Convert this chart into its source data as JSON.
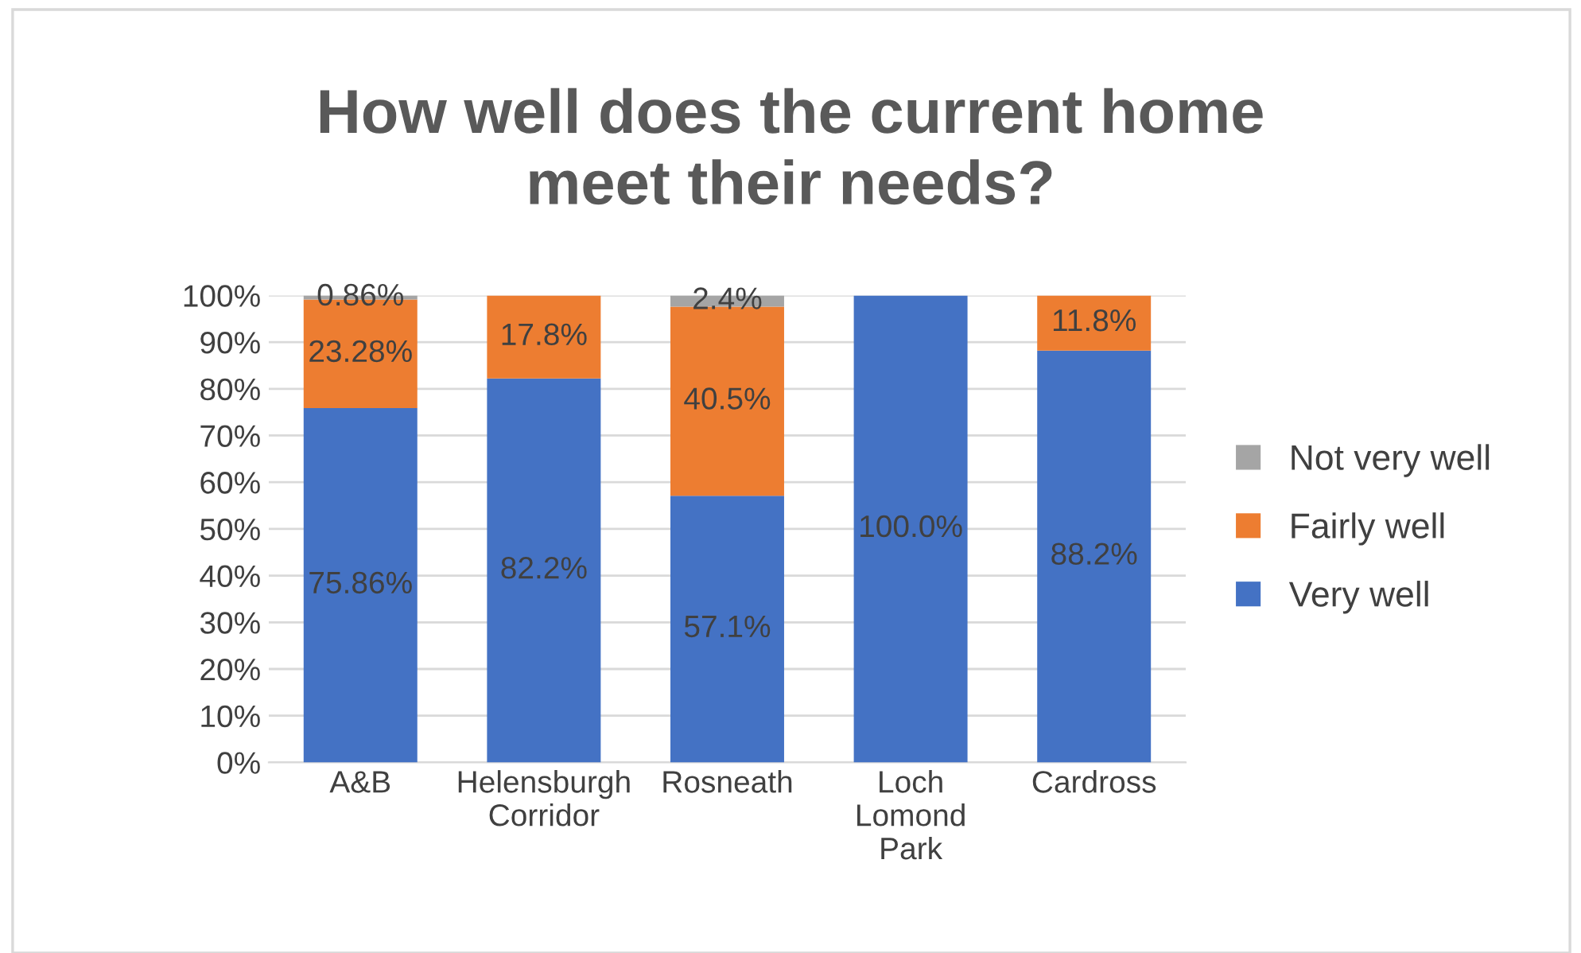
{
  "chart_data": {
    "type": "bar",
    "title": "How well does the current home\nmeet their needs?",
    "categories": [
      "A&B",
      "Helensburgh\nCorridor",
      "Rosneath",
      "Loch\nLomond\nPark",
      "Cardross"
    ],
    "stacked": true,
    "series": [
      {
        "name": "Very well",
        "color": "#4472c4",
        "values": [
          75.86,
          82.2,
          57.1,
          100.0,
          88.2
        ],
        "value_labels": [
          "75.86%",
          "82.2%",
          "57.1%",
          "100.0%",
          "88.2%"
        ]
      },
      {
        "name": "Fairly well",
        "color": "#ed7d31",
        "values": [
          23.28,
          17.8,
          40.5,
          null,
          11.8
        ],
        "value_labels": [
          "23.28%",
          "17.8%",
          "40.5%",
          null,
          "11.8%"
        ]
      },
      {
        "name": "Not very well",
        "color": "#a5a5a5",
        "values": [
          0.86,
          null,
          2.4,
          null,
          null
        ],
        "value_labels": [
          "0.86%",
          null,
          "2.4%",
          null,
          null
        ]
      }
    ],
    "ylim": [
      0,
      100
    ],
    "yticks": [
      {
        "value": 0,
        "label": "0%"
      },
      {
        "value": 10,
        "label": "10%"
      },
      {
        "value": 20,
        "label": "20%"
      },
      {
        "value": 30,
        "label": "30%"
      },
      {
        "value": 40,
        "label": "40%"
      },
      {
        "value": 50,
        "label": "50%"
      },
      {
        "value": 60,
        "label": "60%"
      },
      {
        "value": 70,
        "label": "70%"
      },
      {
        "value": 80,
        "label": "80%"
      },
      {
        "value": 90,
        "label": "90%"
      },
      {
        "value": 100,
        "label": "100%"
      }
    ],
    "grid": "y",
    "legend": "right"
  }
}
